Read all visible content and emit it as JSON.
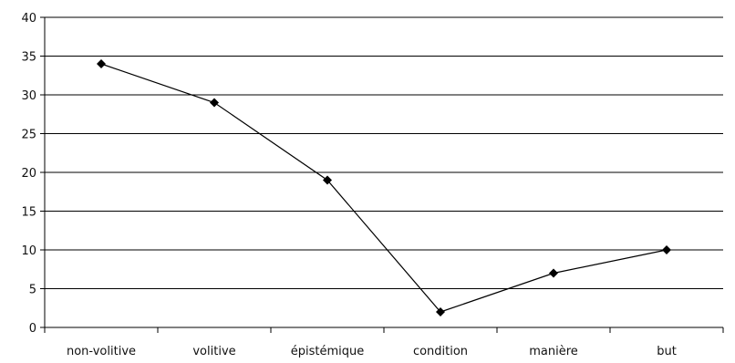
{
  "chart_data": {
    "type": "line",
    "categories": [
      "non-volitive",
      "volitive",
      "épistémique",
      "condition",
      "manière",
      "but"
    ],
    "series": [
      {
        "values": [
          34,
          29,
          19,
          2,
          7,
          10
        ]
      }
    ],
    "title": "",
    "xlabel": "",
    "ylabel": "",
    "ylim": [
      0,
      40
    ],
    "yticks": [
      0,
      5,
      10,
      15,
      20,
      25,
      30,
      35,
      40
    ],
    "grid": true,
    "legend": "none",
    "marker": "diamond",
    "line_color": "#000000",
    "grid_color": "#000000"
  }
}
